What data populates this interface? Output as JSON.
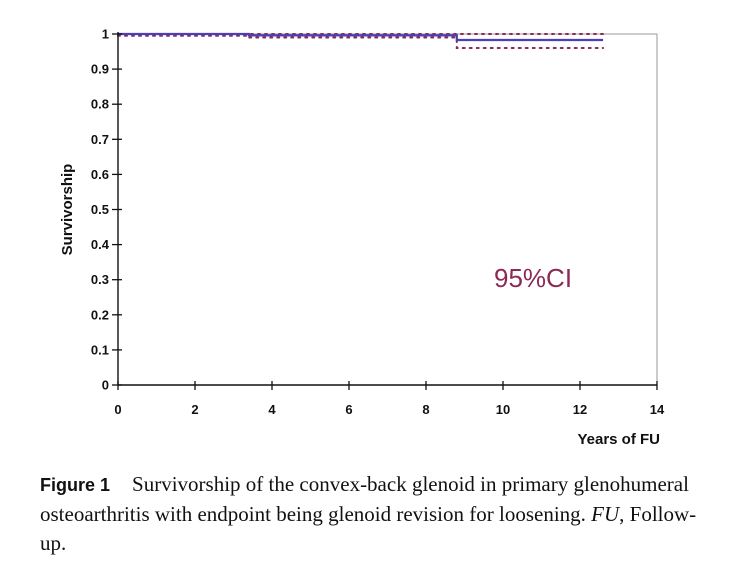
{
  "chart_data": {
    "type": "line",
    "title": "",
    "xlabel": "Years of FU",
    "ylabel": "Survivorship",
    "xlim": [
      0,
      14
    ],
    "ylim": [
      0,
      1
    ],
    "x_ticks": [
      0,
      2,
      4,
      6,
      8,
      10,
      12,
      14
    ],
    "y_ticks": [
      0,
      0.1,
      0.2,
      0.3,
      0.4,
      0.5,
      0.6,
      0.7,
      0.8,
      0.9,
      1
    ],
    "grid": false,
    "annotation": "95%CI",
    "series": [
      {
        "name": "Survivorship",
        "style": "step",
        "color": "#4a3fb5",
        "x": [
          0,
          3.4,
          8.8,
          12.6
        ],
        "y": [
          1.0,
          0.996,
          0.983,
          0.983
        ]
      },
      {
        "name": "95% CI upper",
        "style": "dotted",
        "color": "#8b2a55",
        "x": [
          0,
          3.4,
          8.8,
          12.6
        ],
        "y": [
          1.0,
          1.0,
          1.0,
          1.0
        ]
      },
      {
        "name": "95% CI lower",
        "style": "dotted",
        "color": "#8b2a55",
        "x": [
          0,
          3.4,
          8.8,
          12.6
        ],
        "y": [
          0.995,
          0.99,
          0.96,
          0.96
        ]
      }
    ]
  },
  "caption": {
    "label": "Figure 1",
    "text_part1": "Survivorship of the convex-back glenoid in primary glenohumeral osteoarthritis with endpoint being glenoid revision for loosening. ",
    "abbr": "FU",
    "text_part2": ", Follow-up."
  }
}
